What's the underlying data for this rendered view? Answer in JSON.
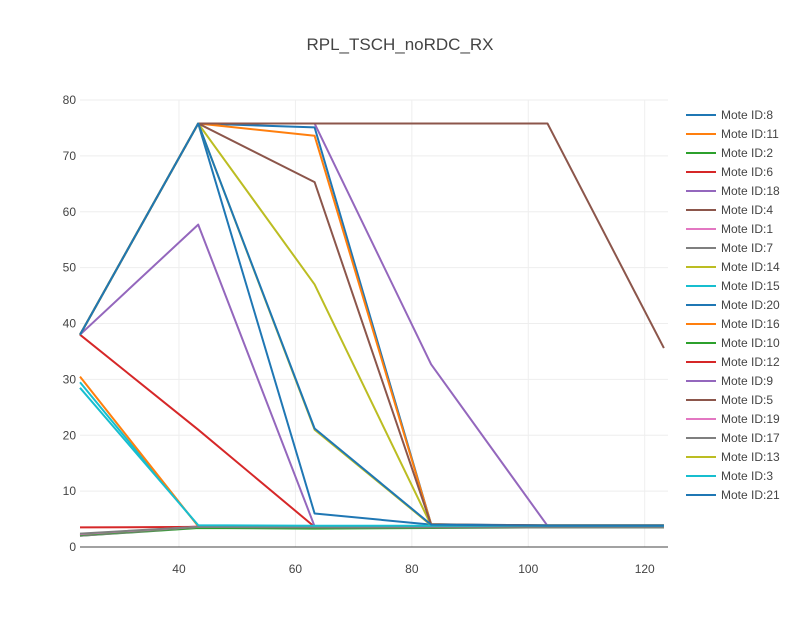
{
  "chart_data": {
    "type": "line",
    "title": "RPL_TSCH_noRDC_RX",
    "xlabel": "",
    "ylabel": "",
    "xlim": [
      23,
      124
    ],
    "ylim": [
      0,
      80
    ],
    "x_ticks": [
      40,
      60,
      80,
      100,
      120
    ],
    "y_ticks": [
      0,
      10,
      20,
      30,
      40,
      50,
      60,
      70,
      80
    ],
    "grid": true,
    "legend_position": "right",
    "series": [
      {
        "name": "Mote ID:8",
        "color": "#1f77b4",
        "x": [
          23,
          43.3,
          63.3,
          83.3,
          103.3,
          123.3
        ],
        "y": [
          38,
          75.8,
          75.1,
          4.1,
          3.8,
          3.8
        ]
      },
      {
        "name": "Mote ID:11",
        "color": "#ff7f0e",
        "x": [
          23,
          43.3,
          63.3,
          83.3,
          103.3,
          123.3
        ],
        "y": [
          38,
          75.8,
          73.6,
          4.1,
          3.7,
          3.7
        ]
      },
      {
        "name": "Mote ID:2",
        "color": "#2ca02c",
        "x": [
          23,
          43.3,
          63.3,
          83.3,
          103.3,
          123.3
        ],
        "y": [
          2.0,
          3.4,
          3.3,
          3.4,
          3.5,
          3.5
        ]
      },
      {
        "name": "Mote ID:6",
        "color": "#d62728",
        "x": [
          23,
          43.3,
          63.3,
          83.3,
          103.3,
          123.3
        ],
        "y": [
          38,
          21.0,
          3.6,
          3.6,
          3.6,
          3.6
        ]
      },
      {
        "name": "Mote ID:18",
        "color": "#9467bd",
        "x": [
          23,
          43.3,
          63.3,
          83.3,
          103.3,
          123.3
        ],
        "y": [
          38,
          75.8,
          75.8,
          32.7,
          3.8,
          3.8
        ]
      },
      {
        "name": "Mote ID:4",
        "color": "#8c564b",
        "x": [
          23,
          43.3,
          63.3,
          83.3,
          103.3,
          123.3
        ],
        "y": [
          38,
          75.8,
          75.8,
          75.8,
          75.8,
          35.6
        ]
      },
      {
        "name": "Mote ID:1",
        "color": "#e377c2",
        "x": [
          23,
          43.3,
          63.3,
          83.3,
          103.3,
          123.3
        ],
        "y": [
          2.1,
          3.7,
          3.6,
          3.6,
          3.6,
          3.6
        ]
      },
      {
        "name": "Mote ID:7",
        "color": "#7f7f7f",
        "x": [
          23,
          43.3,
          63.3,
          83.3,
          103.3,
          123.3
        ],
        "y": [
          2.0,
          3.5,
          3.4,
          3.5,
          3.5,
          3.5
        ]
      },
      {
        "name": "Mote ID:14",
        "color": "#bcbd22",
        "x": [
          23,
          43.3,
          63.3,
          83.3,
          103.3,
          123.3
        ],
        "y": [
          38,
          75.8,
          47.0,
          3.9,
          3.8,
          3.8
        ]
      },
      {
        "name": "Mote ID:15",
        "color": "#17becf",
        "x": [
          23,
          43.3,
          63.3,
          83.3,
          103.3,
          123.3
        ],
        "y": [
          29.5,
          3.8,
          3.7,
          3.7,
          3.7,
          3.7
        ]
      },
      {
        "name": "Mote ID:20",
        "color": "#1f77b4",
        "x": [
          23,
          43.3,
          63.3,
          83.3,
          103.3,
          123.3
        ],
        "y": [
          38,
          75.8,
          6.0,
          4.0,
          3.9,
          3.9
        ]
      },
      {
        "name": "Mote ID:16",
        "color": "#ff7f0e",
        "x": [
          23,
          43.3,
          63.3,
          83.3,
          103.3,
          123.3
        ],
        "y": [
          30.5,
          3.7,
          3.6,
          3.6,
          3.6,
          3.6
        ]
      },
      {
        "name": "Mote ID:10",
        "color": "#2ca02c",
        "x": [
          23,
          43.3,
          63.3,
          83.3,
          103.3,
          123.3
        ],
        "y": [
          2.2,
          3.5,
          3.4,
          3.5,
          3.5,
          3.5
        ]
      },
      {
        "name": "Mote ID:12",
        "color": "#d62728",
        "x": [
          23,
          43.3,
          63.3,
          83.3,
          103.3,
          123.3
        ],
        "y": [
          3.5,
          3.6,
          3.6,
          3.6,
          3.6,
          3.6
        ]
      },
      {
        "name": "Mote ID:9",
        "color": "#9467bd",
        "x": [
          23,
          43.3,
          63.3,
          83.3,
          103.3,
          123.3
        ],
        "y": [
          38,
          57.7,
          3.7,
          3.7,
          3.7,
          3.7
        ]
      },
      {
        "name": "Mote ID:5",
        "color": "#8c564b",
        "x": [
          23,
          43.3,
          63.3,
          83.3,
          103.3,
          123.3
        ],
        "y": [
          38,
          75.8,
          65.3,
          4.0,
          3.9,
          3.9
        ]
      },
      {
        "name": "Mote ID:19",
        "color": "#e377c2",
        "x": [
          23,
          43.3,
          63.3,
          83.3,
          103.3,
          123.3
        ],
        "y": [
          2.3,
          3.6,
          3.6,
          3.6,
          3.6,
          3.6
        ]
      },
      {
        "name": "Mote ID:17",
        "color": "#7f7f7f",
        "x": [
          23,
          43.3,
          63.3,
          83.3,
          103.3,
          123.3
        ],
        "y": [
          2.4,
          3.6,
          3.5,
          3.5,
          3.5,
          3.5
        ]
      },
      {
        "name": "Mote ID:13",
        "color": "#bcbd22",
        "x": [
          23,
          43.3,
          63.3,
          83.3,
          103.3,
          123.3
        ],
        "y": [
          38,
          75.8,
          21.0,
          3.9,
          3.8,
          3.8
        ]
      },
      {
        "name": "Mote ID:3",
        "color": "#17becf",
        "x": [
          23,
          43.3,
          63.3,
          83.3,
          103.3,
          123.3
        ],
        "y": [
          28.5,
          3.9,
          3.8,
          3.8,
          3.8,
          3.8
        ]
      },
      {
        "name": "Mote ID:21",
        "color": "#1f77b4",
        "x": [
          23,
          43.3,
          63.3,
          83.3,
          103.3,
          123.3
        ],
        "y": [
          38,
          75.8,
          21.2,
          4.0,
          3.8,
          3.8
        ]
      }
    ]
  }
}
